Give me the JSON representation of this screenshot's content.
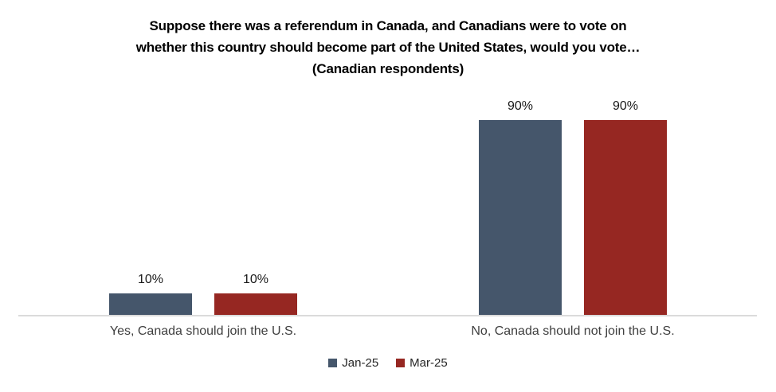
{
  "chart_data": {
    "type": "bar",
    "title": "Suppose there was a referendum in Canada, and Canadians were to vote on whether this country should become part of the United States, would you vote… (Canadian respondents)",
    "title_lines": [
      "Suppose there was a referendum in Canada, and Canadians were to vote on",
      "whether this country should become part of the United States, would you vote…",
      "(Canadian respondents)"
    ],
    "categories": [
      "Yes, Canada should join the U.S.",
      "No, Canada should not join the U.S."
    ],
    "series": [
      {
        "name": "Jan-25",
        "color": "#45566B",
        "values": [
          10,
          90
        ]
      },
      {
        "name": "Mar-25",
        "color": "#962722",
        "values": [
          10,
          90
        ]
      }
    ],
    "value_labels": [
      [
        "10%",
        "90%"
      ],
      [
        "10%",
        "90%"
      ]
    ],
    "value_suffix": "%",
    "ylim": [
      0,
      100
    ],
    "grid": false,
    "legend_position": "bottom",
    "xlabel": "",
    "ylabel": "",
    "axis_line_color": "#DBDBDB",
    "background_color": "#FFFFFF"
  }
}
